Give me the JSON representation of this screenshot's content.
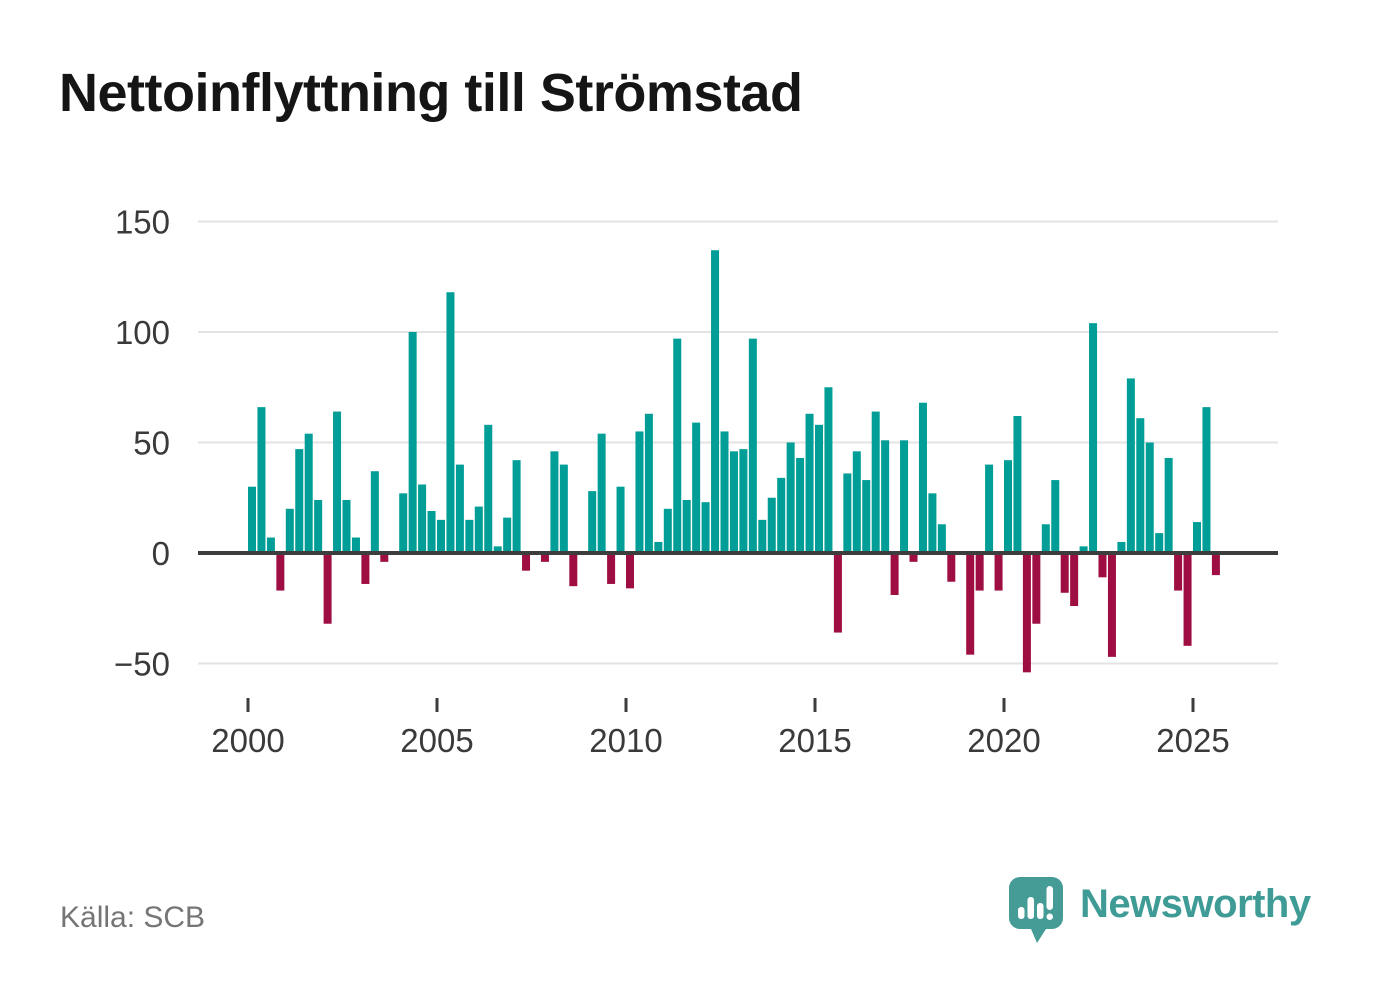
{
  "header": {
    "title": "Nettoinflyttning till Strömstad"
  },
  "source": {
    "label": "Källa: SCB"
  },
  "logo": {
    "text": "Newsworthy",
    "color": "#3F9B95"
  },
  "chart_data": {
    "type": "bar",
    "title": "Nettoinflyttning till Strömstad",
    "start_year": 2000,
    "start_quarter": 1,
    "frequency": "quarterly",
    "values": [
      30,
      66,
      7,
      -17,
      20,
      47,
      54,
      24,
      -32,
      64,
      24,
      7,
      -14,
      37,
      -4,
      0,
      27,
      100,
      31,
      19,
      15,
      118,
      40,
      15,
      21,
      58,
      3,
      16,
      42,
      -8,
      0,
      -4,
      46,
      40,
      -15,
      0,
      28,
      54,
      -14,
      30,
      -16,
      55,
      63,
      5,
      20,
      97,
      24,
      59,
      23,
      137,
      55,
      46,
      47,
      97,
      15,
      25,
      34,
      50,
      43,
      63,
      58,
      75,
      -36,
      36,
      46,
      33,
      64,
      51,
      -19,
      51,
      -4,
      68,
      27,
      13,
      -13,
      0,
      -46,
      -17,
      40,
      -17,
      42,
      62,
      -54,
      -32,
      13,
      33,
      -18,
      -24,
      3,
      104,
      -11,
      -47,
      5,
      79,
      61,
      50,
      9,
      43,
      -17,
      -42,
      14,
      66,
      -10
    ],
    "x_tick_labels": [
      "2000",
      "2005",
      "2010",
      "2015",
      "2020",
      "2025"
    ],
    "y_ticks": [
      150,
      100,
      50,
      0,
      -50
    ],
    "y_tick_labels": [
      "150",
      "100",
      "50",
      "0",
      "−50"
    ],
    "ylim": [
      -62,
      165
    ],
    "grid": true,
    "legend": "none",
    "bar_color_positive": "#009E96",
    "bar_color_negative": "#9E0E42",
    "grid_color": "#E3E3E3",
    "axis_color": "#3D3D3D",
    "tick_label_color": "#3A3A3A"
  }
}
